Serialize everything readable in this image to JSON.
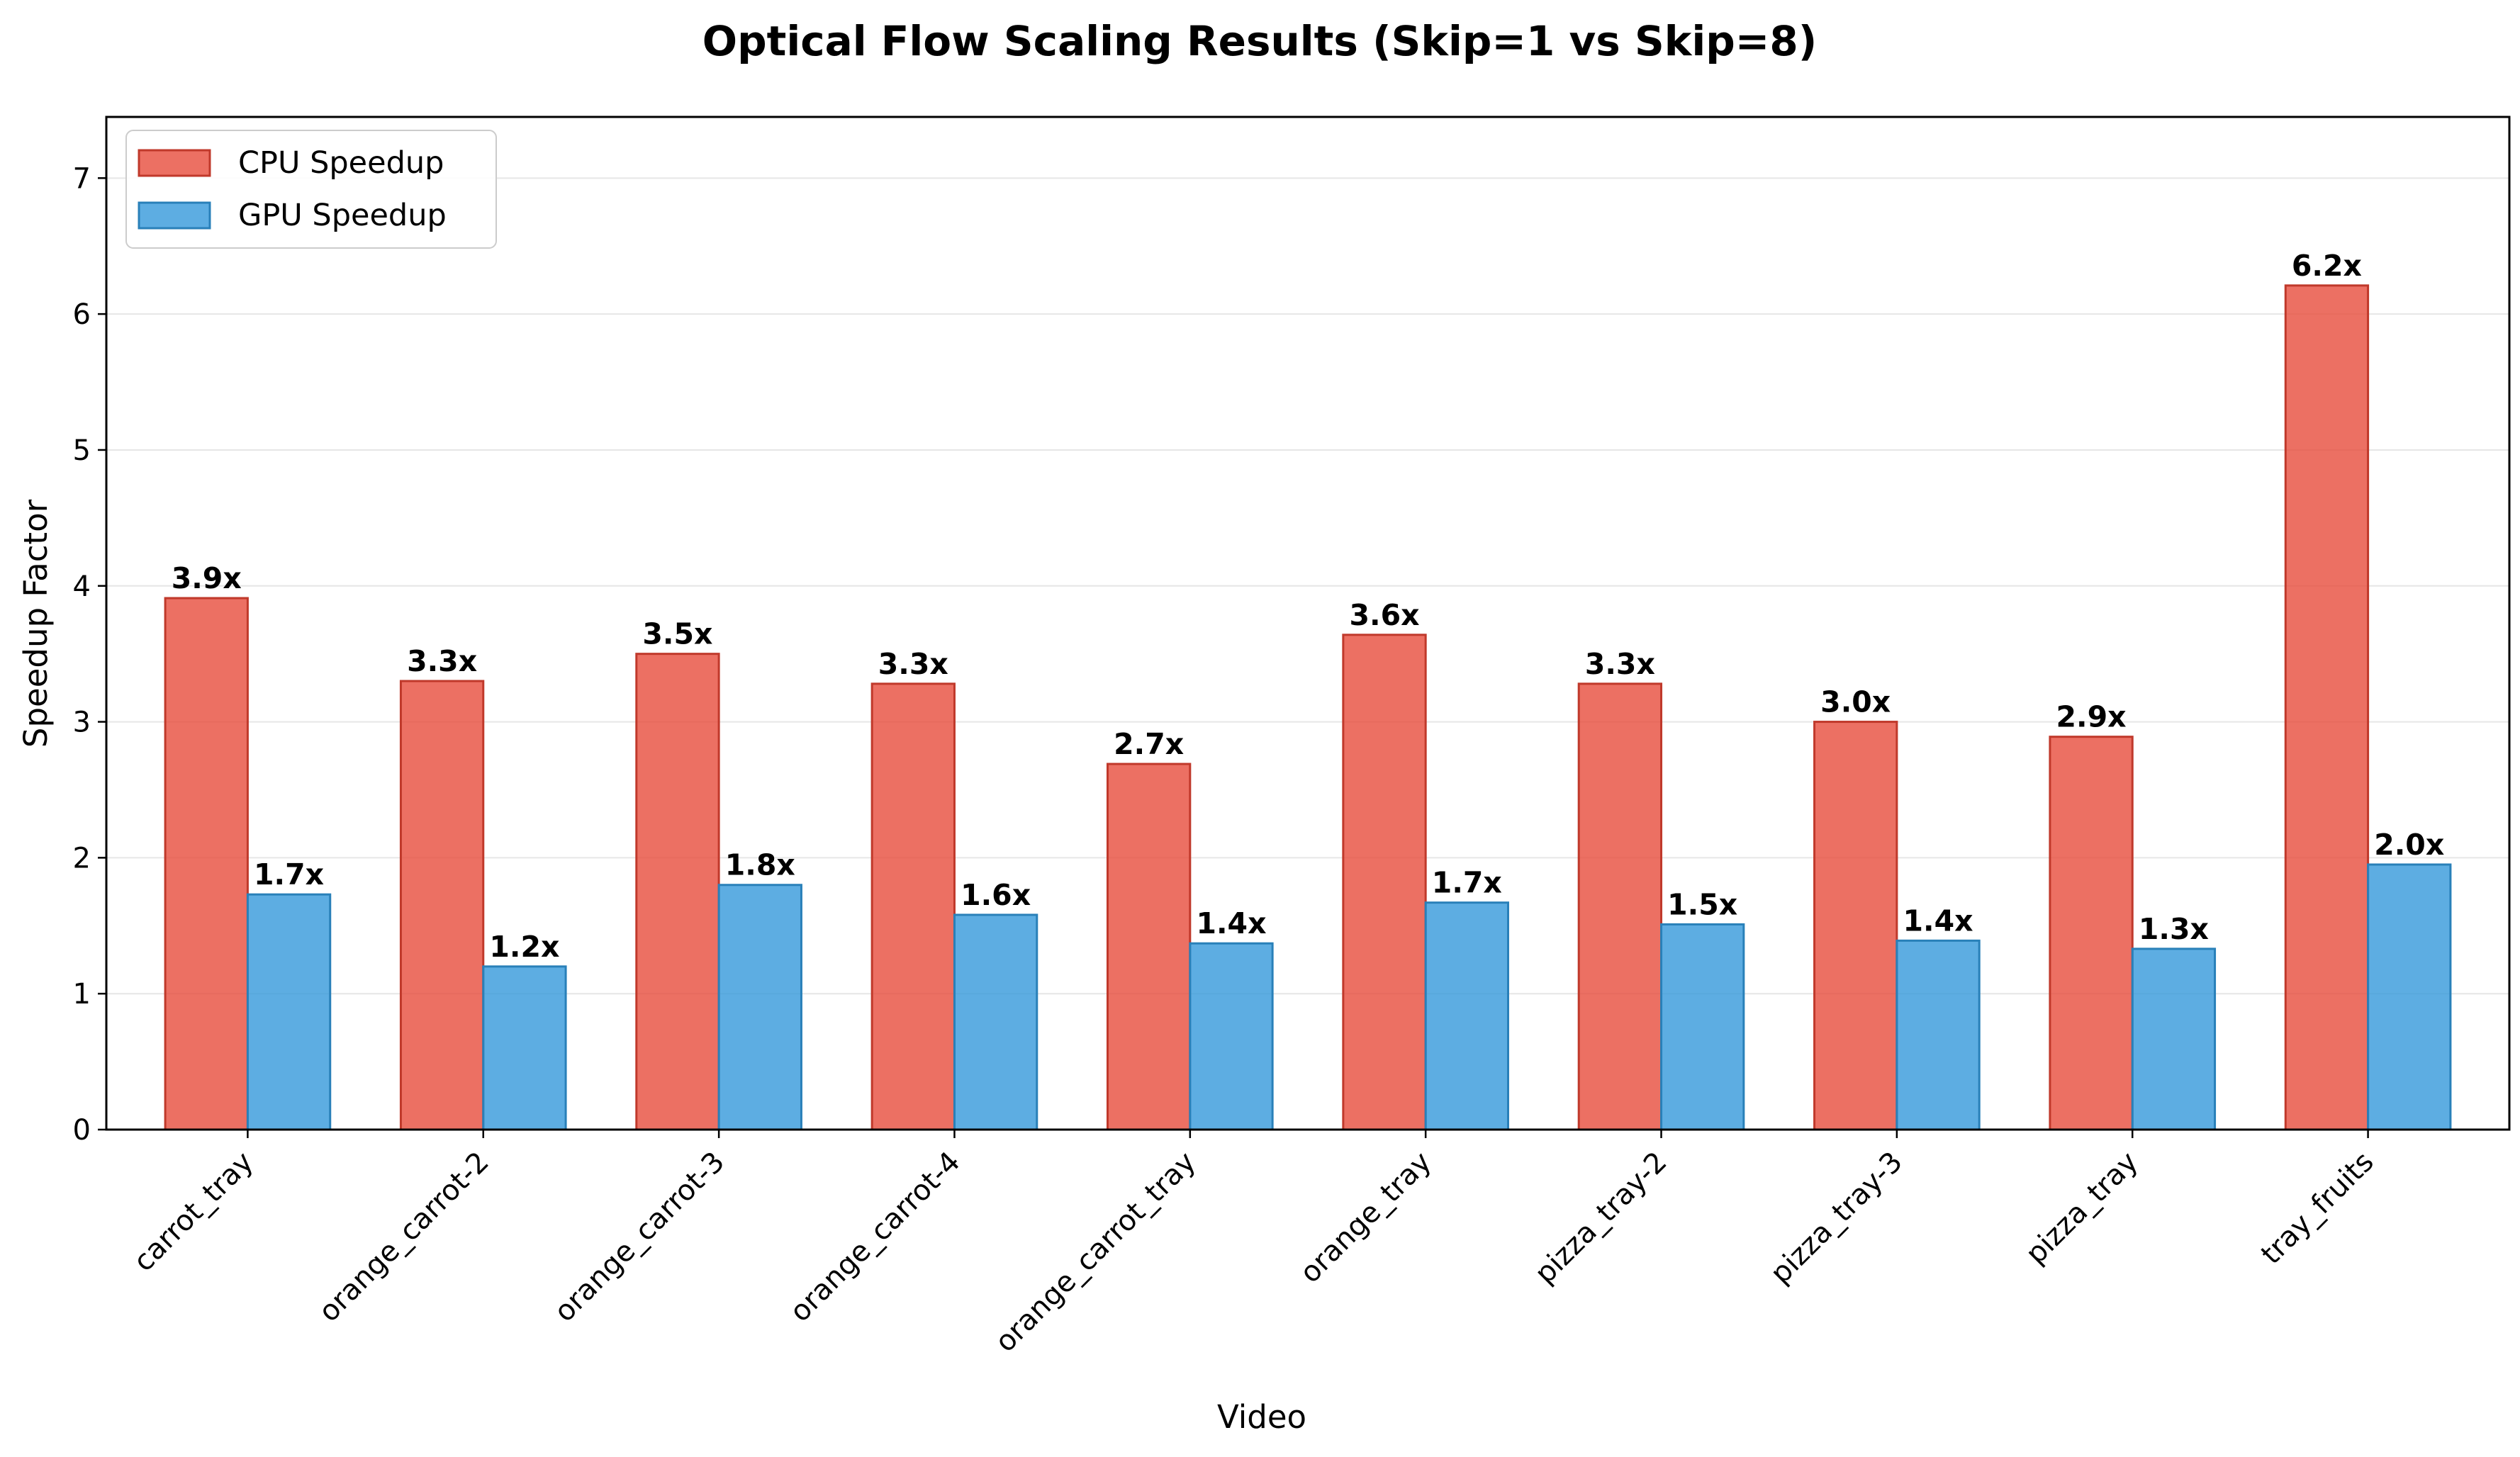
{
  "chart_data": {
    "type": "bar",
    "title": "Optical Flow Scaling Results (Skip=1 vs Skip=8)",
    "xlabel": "Video",
    "ylabel": "Speedup Factor",
    "ylim": [
      0,
      7.45
    ],
    "yticks": [
      "0",
      "1",
      "2",
      "3",
      "4",
      "5",
      "6",
      "7"
    ],
    "grid": "y",
    "legend_position": "upper-left",
    "categories": [
      "carrot_tray",
      "orange_carrot-2",
      "orange_carrot-3",
      "orange_carrot-4",
      "orange_carrot_tray",
      "orange_tray",
      "pizza_tray-2",
      "pizza_tray-3",
      "pizza_tray",
      "tray_fruits"
    ],
    "series": [
      {
        "name": "CPU Speedup",
        "color": "#e74c3c",
        "values": [
          3.91,
          3.3,
          3.5,
          3.28,
          2.69,
          3.64,
          3.28,
          3.0,
          2.89,
          6.21
        ],
        "labels": [
          "3.9x",
          "3.3x",
          "3.5x",
          "3.3x",
          "2.7x",
          "3.6x",
          "3.3x",
          "3.0x",
          "2.9x",
          "6.2x"
        ]
      },
      {
        "name": "GPU Speedup",
        "color": "#3498db",
        "values": [
          1.73,
          1.2,
          1.8,
          1.58,
          1.37,
          1.67,
          1.51,
          1.39,
          1.33,
          1.95
        ],
        "labels": [
          "1.7x",
          "1.2x",
          "1.8x",
          "1.6x",
          "1.4x",
          "1.7x",
          "1.5x",
          "1.4x",
          "1.3x",
          "2.0x"
        ]
      }
    ]
  }
}
